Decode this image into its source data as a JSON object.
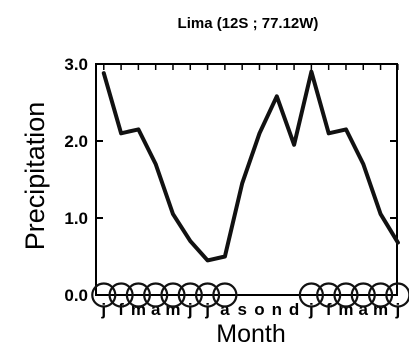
{
  "chart_data": {
    "type": "line",
    "title": "Lima (12S  ;  77.12W)",
    "xlabel": "Month",
    "ylabel": "Precipitation",
    "ylim": [
      0,
      3.0
    ],
    "yticks": [
      "0.0",
      "1.0",
      "2.0",
      "3.0"
    ],
    "x": [
      "j",
      "f",
      "m",
      "a",
      "m",
      "j",
      "j",
      "a",
      "s",
      "o",
      "n",
      "d",
      "j",
      "f",
      "m",
      "a",
      "m",
      "j"
    ],
    "series": [
      {
        "values": [
          2.88,
          2.1,
          2.15,
          1.7,
          1.05,
          0.7,
          0.45,
          0.5,
          1.45,
          2.1,
          2.58,
          1.95,
          2.9,
          2.1,
          2.15,
          1.7,
          1.05,
          0.68
        ]
      }
    ],
    "circle_markers": [
      1,
      1,
      1,
      1,
      1,
      1,
      1,
      1,
      0,
      0,
      0,
      0,
      1,
      1,
      1,
      1,
      1,
      1
    ],
    "grid": false,
    "colors": {
      "line": "#111111",
      "axes": "#000000"
    }
  }
}
